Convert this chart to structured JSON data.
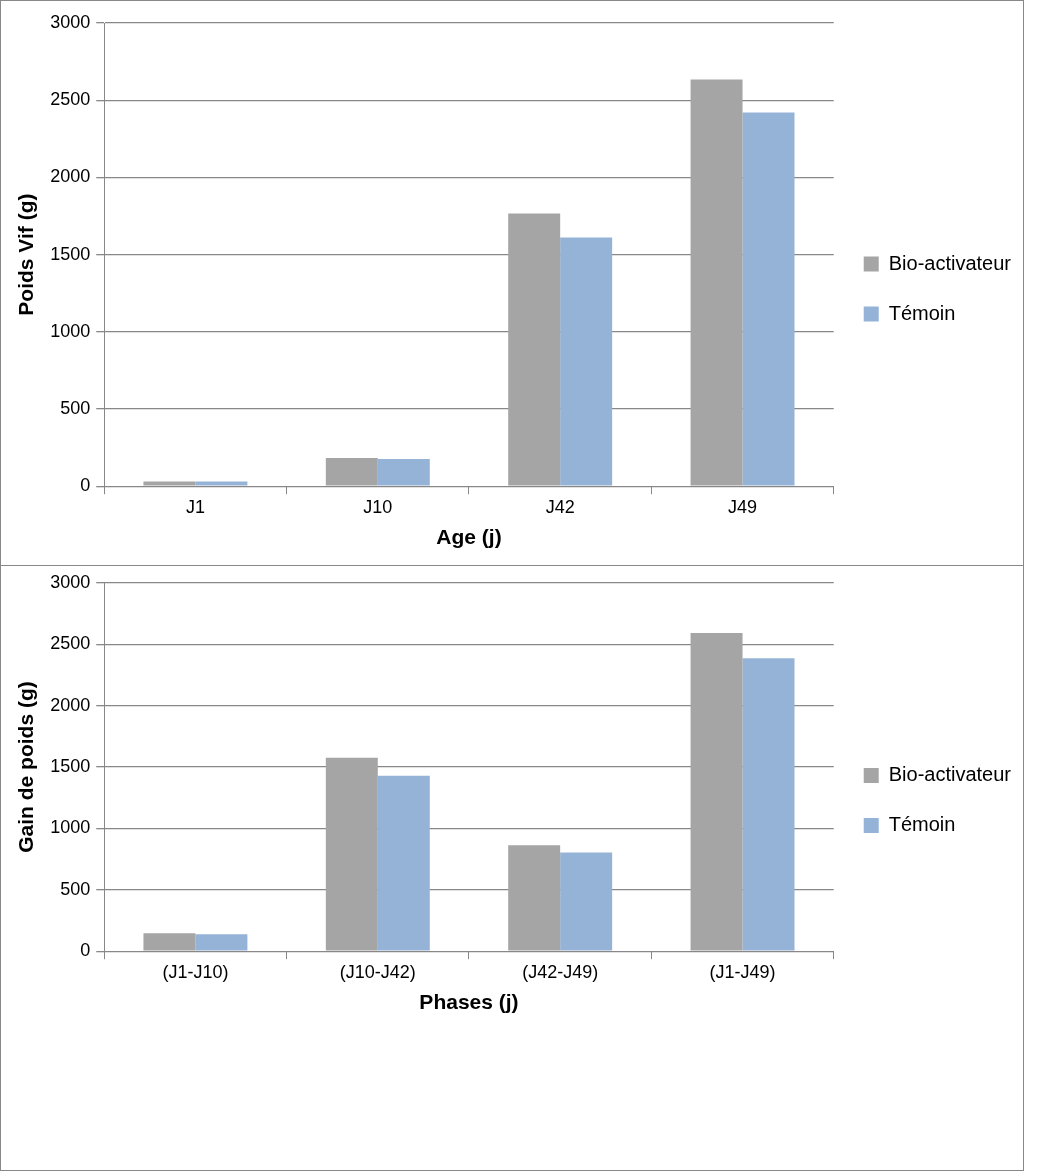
{
  "chart_data": [
    {
      "type": "bar",
      "xlabel": "Age (j)",
      "ylabel": "Poids Vif (g)",
      "categories": [
        "J1",
        "J10",
        "J42",
        "J49"
      ],
      "series": [
        {
          "name": "Bio-activateur",
          "color": "#a5a5a5",
          "values": [
            30,
            183,
            1766,
            2634
          ]
        },
        {
          "name": "Témoin",
          "color": "#95b3d7",
          "values": [
            30,
            176,
            1611,
            2420
          ]
        }
      ],
      "ylim": [
        0,
        3000
      ],
      "yticks": [
        0,
        500,
        1000,
        1500,
        2000,
        2500,
        3000
      ],
      "grid": "y",
      "legend": "right"
    },
    {
      "type": "bar",
      "xlabel": "Phases (j)",
      "ylabel": "Gain de poids (g)",
      "categories": [
        "(J1-J10)",
        "(J10-J42)",
        "(J42-J49)",
        "(J1-J49)"
      ],
      "series": [
        {
          "name": "Bio-activateur",
          "color": "#a5a5a5",
          "values": [
            146,
            1575,
            862,
            2591
          ]
        },
        {
          "name": "Témoin",
          "color": "#95b3d7",
          "values": [
            138,
            1429,
            803,
            2386
          ]
        }
      ],
      "ylim": [
        0,
        3000
      ],
      "yticks": [
        0,
        500,
        1000,
        1500,
        2000,
        2500,
        3000
      ],
      "grid": "y",
      "legend": "right"
    }
  ]
}
